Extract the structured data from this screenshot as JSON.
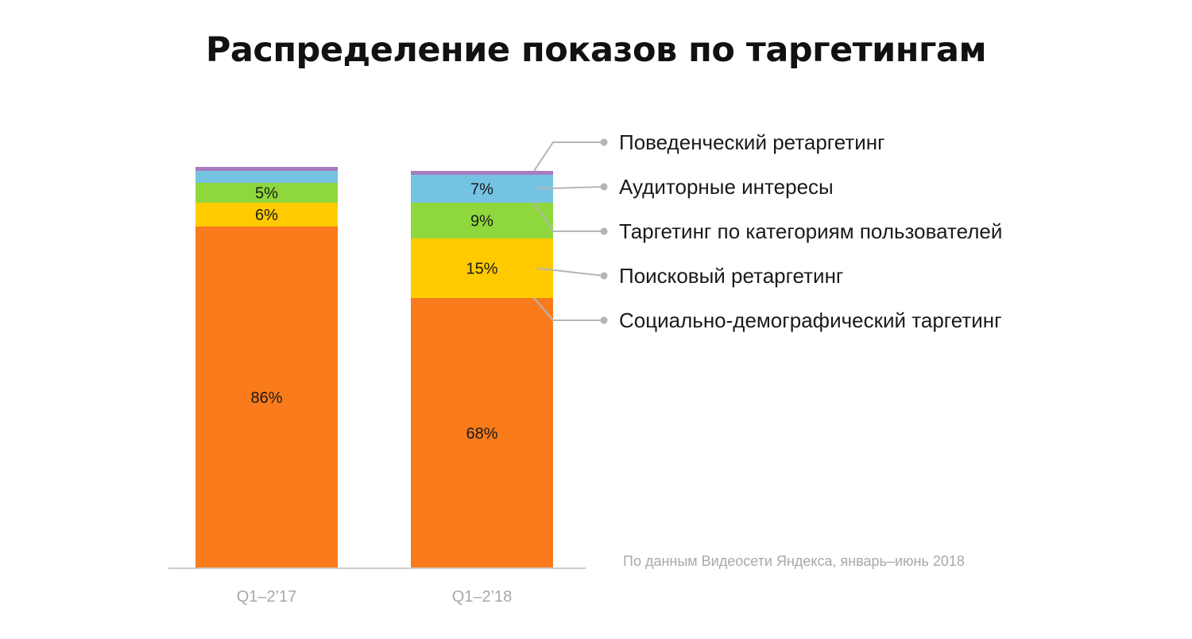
{
  "chart_data": {
    "type": "bar",
    "stacked": true,
    "title": "Распределение показов по таргетингам",
    "categories": [
      "Q1–2’17",
      "Q1–2’18"
    ],
    "series": [
      {
        "name": "Социально-демографический таргетинг",
        "color": "#f97b1b",
        "values": [
          86,
          68
        ],
        "labels": [
          "86%",
          "68%"
        ]
      },
      {
        "name": "Поисковый ретаргетинг",
        "color": "#ffcb00",
        "values": [
          6,
          15
        ],
        "labels": [
          "6%",
          "15%"
        ]
      },
      {
        "name": "Таргетинг по категориям пользователей",
        "color": "#8ed83d",
        "values": [
          5,
          9
        ],
        "labels": [
          "5%",
          "9%"
        ]
      },
      {
        "name": "Аудиторные интересы",
        "color": "#75c3e2",
        "values": [
          3,
          7
        ],
        "labels": [
          "",
          "7%"
        ]
      },
      {
        "name": "Поведенческий ретаргетинг",
        "color": "#a97bbf",
        "values": [
          1,
          1
        ],
        "labels": [
          "",
          ""
        ]
      }
    ],
    "ylim": [
      0,
      101
    ],
    "legend": "right",
    "source_note": "По данным Видеосети Яндекса, январь–июнь 2018"
  }
}
